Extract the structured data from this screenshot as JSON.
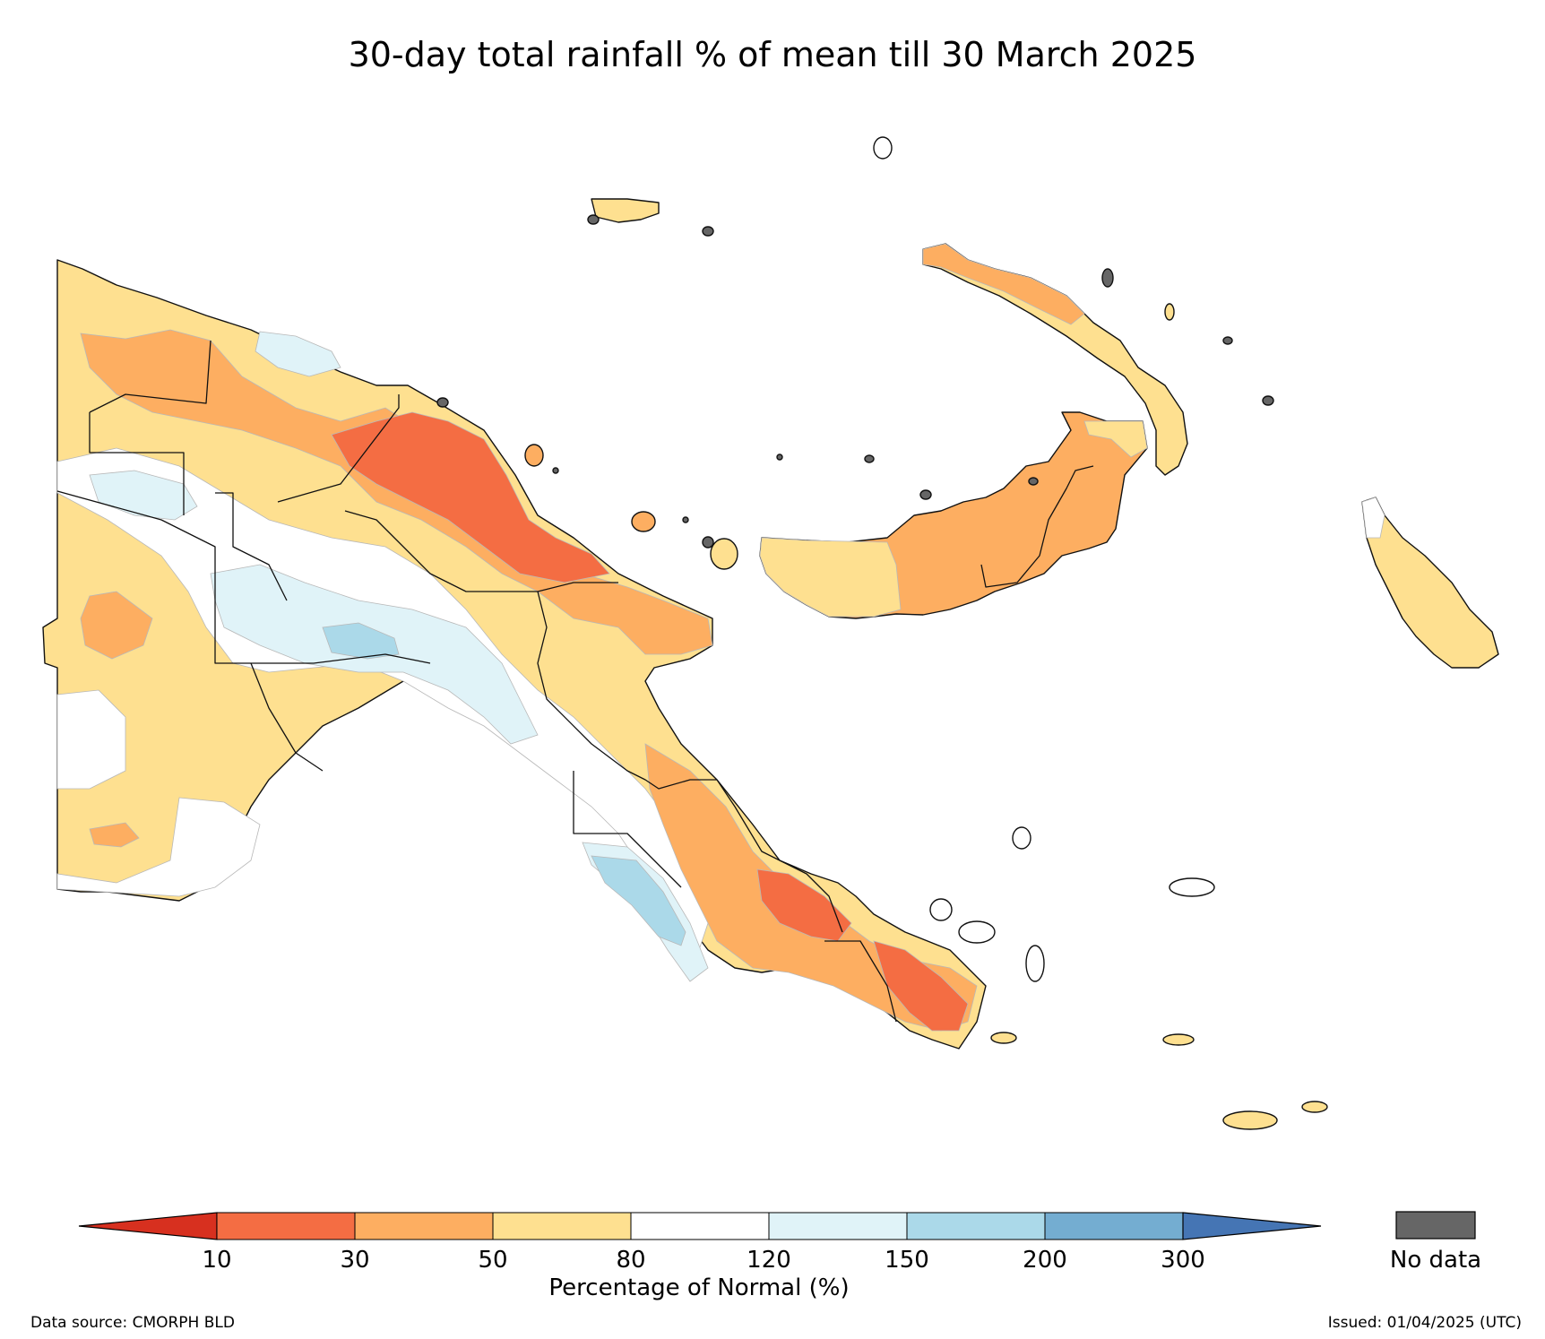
{
  "title": "30-day total rainfall % of mean till 30 March 2025",
  "colorbar": {
    "label": "Percentage of Normal (%)",
    "ticks": [
      "10",
      "30",
      "50",
      "80",
      "120",
      "150",
      "200",
      "300"
    ],
    "colors": {
      "below_10": "#d7301f",
      "10_30": "#f46d43",
      "30_50": "#fdae61",
      "50_80": "#fee090",
      "80_120": "#ffffff",
      "120_150": "#e0f3f8",
      "150_200": "#abd9e9",
      "200_300": "#74add1",
      "above_300": "#4575b4"
    },
    "no_data_label": "No data",
    "no_data_color": "#666666"
  },
  "footer": {
    "source": "Data source: CMORPH BLD",
    "issued": "Issued: 01/04/2025 (UTC)"
  }
}
